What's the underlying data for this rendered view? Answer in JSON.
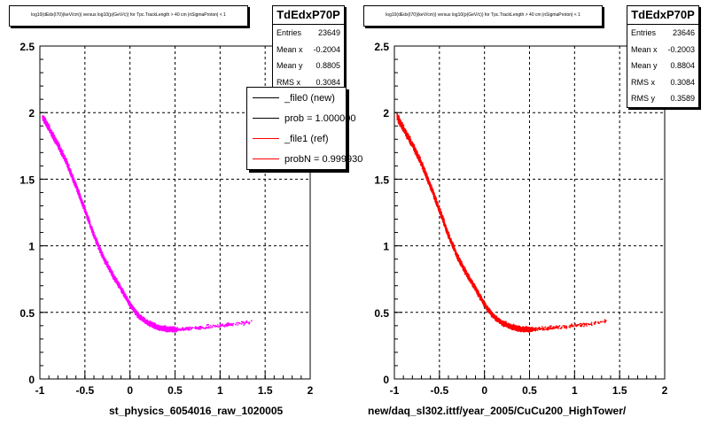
{
  "footer_text": "",
  "panels": [
    {
      "title": "log10(dEdx(I70)(keV/cm)) versus log10(p(GeV/c)) for Tpc.TrackLength > 40 cm |nSigmaProton| < 1",
      "stats": {
        "name": "TdEdxP70P",
        "rows": [
          {
            "label": "Entries",
            "value": "23649"
          },
          {
            "label": "Mean x",
            "value": "-0.2004"
          },
          {
            "label": "Mean y",
            "value": "0.8805"
          },
          {
            "label": "RMS x",
            "value": "0.3084"
          }
        ]
      },
      "legend": [
        {
          "label": "_file0 (new)",
          "color": "#000000"
        },
        {
          "label": "prob = 1.000000",
          "color": "#000000"
        },
        {
          "label": "_file1 (ref)",
          "color": "#ff0000"
        },
        {
          "label": "probN = 0.999930",
          "color": "#ff0000"
        }
      ],
      "xaxis_title": "st_physics_6054016_raw_1020005",
      "marker_color": "#ff00ff"
    },
    {
      "title": "log10(dEdx(I70)(keV/cm)) versus log10(p(GeV/c)) for Tpc.TrackLength > 40 cm |nSigmaProton| < 1",
      "stats": {
        "name": "TdEdxP70P",
        "rows": [
          {
            "label": "Entries",
            "value": "23646"
          },
          {
            "label": "Mean x",
            "value": "-0.2003"
          },
          {
            "label": "Mean y",
            "value": "0.8804"
          },
          {
            "label": "RMS x",
            "value": "0.3084"
          },
          {
            "label": "RMS y",
            "value": "0.3589"
          }
        ]
      },
      "legend": [],
      "xaxis_title": "new/daq_sl302.ittf/year_2005/CuCu200_HighTower/",
      "marker_color": "#ff0000"
    }
  ],
  "chart_data": [
    {
      "type": "scatter",
      "title": "log10(dEdx(I70)(keV/cm)) versus log10(p(GeV/c)) for Tpc.TrackLength > 40 cm |nSigmaProton| < 1",
      "xlabel": "st_physics_6054016_raw_1020005",
      "ylabel": "",
      "xlim": [
        -1,
        2
      ],
      "ylim": [
        0,
        2.5
      ],
      "xticks": [
        "-1",
        "-0.5",
        "0",
        "0.5",
        "1",
        "1.5",
        "2"
      ],
      "yticks": [
        "0",
        "0.5",
        "1",
        "1.5",
        "2",
        "2.5"
      ],
      "grid": true,
      "band_center": {
        "x": [
          -0.97,
          -0.9,
          -0.8,
          -0.7,
          -0.6,
          -0.5,
          -0.4,
          -0.3,
          -0.2,
          -0.1,
          0.0,
          0.1,
          0.2,
          0.3,
          0.4,
          0.5,
          0.7,
          1.0,
          1.35
        ],
        "y": [
          1.97,
          1.88,
          1.76,
          1.62,
          1.45,
          1.27,
          1.08,
          0.92,
          0.79,
          0.68,
          0.56,
          0.47,
          0.42,
          0.39,
          0.375,
          0.37,
          0.38,
          0.4,
          0.43
        ]
      }
    },
    {
      "type": "scatter",
      "title": "log10(dEdx(I70)(keV/cm)) versus log10(p(GeV/c)) for Tpc.TrackLength > 40 cm |nSigmaProton| < 1",
      "xlabel": "new/daq_sl302.ittf/year_2005/CuCu200_HighTower/",
      "ylabel": "",
      "xlim": [
        -1,
        2
      ],
      "ylim": [
        0,
        2.5
      ],
      "xticks": [
        "-1",
        "-0.5",
        "0",
        "0.5",
        "1",
        "1.5",
        "2"
      ],
      "yticks": [
        "0",
        "0.5",
        "1",
        "1.5",
        "2",
        "2.5"
      ],
      "grid": true,
      "band_center": {
        "x": [
          -0.97,
          -0.9,
          -0.8,
          -0.7,
          -0.6,
          -0.5,
          -0.4,
          -0.3,
          -0.2,
          -0.1,
          0.0,
          0.1,
          0.2,
          0.3,
          0.4,
          0.5,
          0.7,
          1.0,
          1.35
        ],
        "y": [
          1.97,
          1.88,
          1.76,
          1.62,
          1.45,
          1.27,
          1.08,
          0.92,
          0.79,
          0.68,
          0.56,
          0.47,
          0.42,
          0.39,
          0.375,
          0.37,
          0.38,
          0.4,
          0.43
        ]
      }
    }
  ]
}
